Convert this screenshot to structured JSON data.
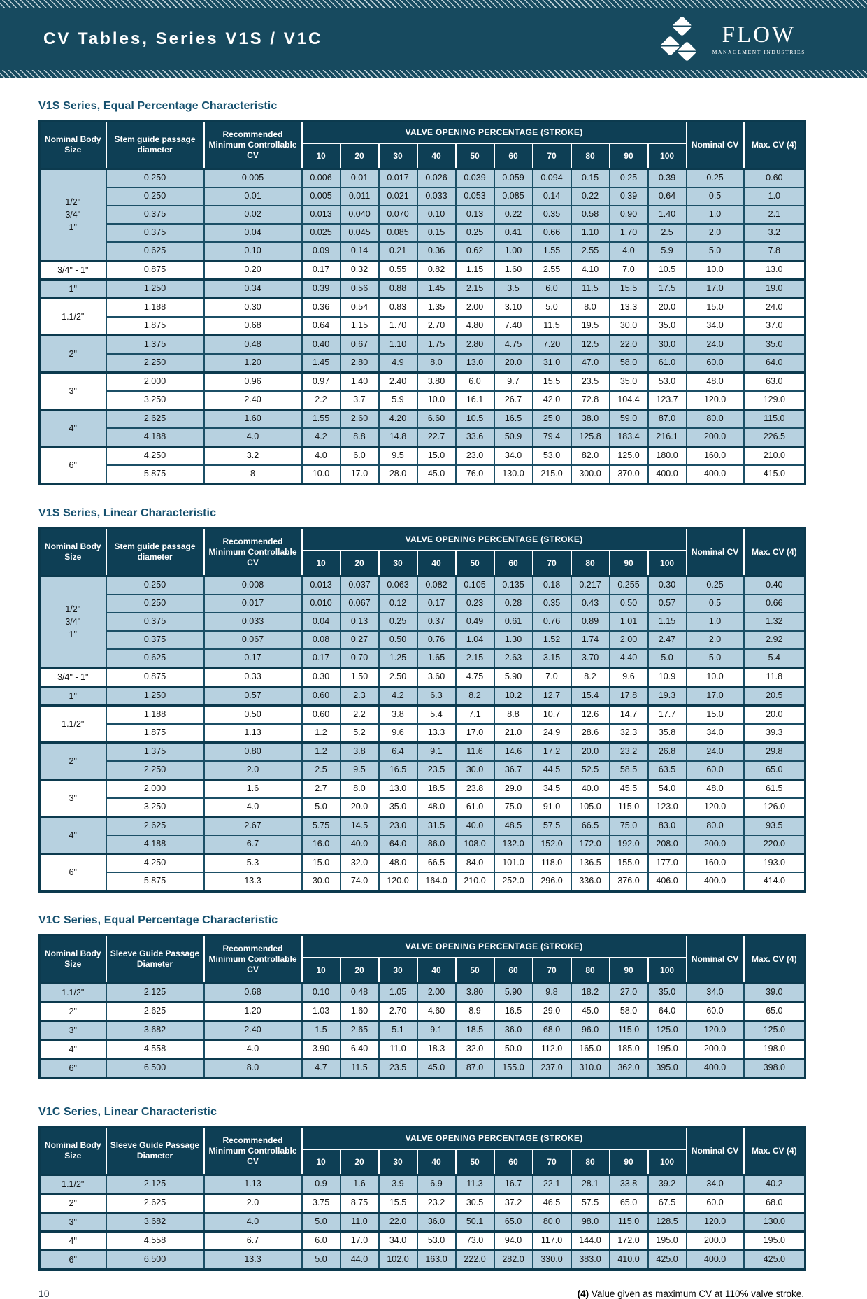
{
  "header": {
    "title": "CV Tables, Series V1S / V1C",
    "logo_name": "FLOW",
    "logo_subtitle": "MANAGEMENT INDUSTRIES"
  },
  "footer": {
    "page_number": "10",
    "note_marker": "(4)",
    "note_text": " Value given as maximum CV at 110% valve stroke."
  },
  "shared_headers": {
    "body_size": "Nominal Body Size",
    "min_cv": "Recommended Minimum Controllable CV",
    "stroke_title": "VALVE OPENING PERCENTAGE (STROKE)",
    "stroke_ticks": [
      "10",
      "20",
      "30",
      "40",
      "50",
      "60",
      "70",
      "80",
      "90",
      "100"
    ],
    "nominal_cv": "Nominal CV",
    "max_cv": "Max. CV (4)"
  },
  "tables": [
    {
      "title": "V1S Series, Equal Percentage Characteristic",
      "diameter_header": "Stem guide passage diameter",
      "groups": [
        {
          "size_lines": [
            "1/2\"",
            "3/4\"",
            "1\""
          ],
          "tint": "blue",
          "rows": [
            [
              "0.250",
              "0.005",
              "0.006",
              "0.01",
              "0.017",
              "0.026",
              "0.039",
              "0.059",
              "0.094",
              "0.15",
              "0.25",
              "0.39",
              "0.25",
              "0.60"
            ],
            [
              "0.250",
              "0.01",
              "0.005",
              "0.011",
              "0.021",
              "0.033",
              "0.053",
              "0.085",
              "0.14",
              "0.22",
              "0.39",
              "0.64",
              "0.5",
              "1.0"
            ],
            [
              "0.375",
              "0.02",
              "0.013",
              "0.040",
              "0.070",
              "0.10",
              "0.13",
              "0.22",
              "0.35",
              "0.58",
              "0.90",
              "1.40",
              "1.0",
              "2.1"
            ],
            [
              "0.375",
              "0.04",
              "0.025",
              "0.045",
              "0.085",
              "0.15",
              "0.25",
              "0.41",
              "0.66",
              "1.10",
              "1.70",
              "2.5",
              "2.0",
              "3.2"
            ],
            [
              "0.625",
              "0.10",
              "0.09",
              "0.14",
              "0.21",
              "0.36",
              "0.62",
              "1.00",
              "1.55",
              "2.55",
              "4.0",
              "5.9",
              "5.0",
              "7.8"
            ]
          ]
        },
        {
          "size_lines": [
            "3/4\" - 1\""
          ],
          "tint": "white",
          "rows": [
            [
              "0.875",
              "0.20",
              "0.17",
              "0.32",
              "0.55",
              "0.82",
              "1.15",
              "1.60",
              "2.55",
              "4.10",
              "7.0",
              "10.5",
              "10.0",
              "13.0"
            ]
          ]
        },
        {
          "size_lines": [
            "1\""
          ],
          "tint": "blue",
          "rows": [
            [
              "1.250",
              "0.34",
              "0.39",
              "0.56",
              "0.88",
              "1.45",
              "2.15",
              "3.5",
              "6.0",
              "11.5",
              "15.5",
              "17.5",
              "17.0",
              "19.0"
            ]
          ]
        },
        {
          "size_lines": [
            "1.1/2\""
          ],
          "tint": "white",
          "rows": [
            [
              "1.188",
              "0.30",
              "0.36",
              "0.54",
              "0.83",
              "1.35",
              "2.00",
              "3.10",
              "5.0",
              "8.0",
              "13.3",
              "20.0",
              "15.0",
              "24.0"
            ],
            [
              "1.875",
              "0.68",
              "0.64",
              "1.15",
              "1.70",
              "2.70",
              "4.80",
              "7.40",
              "11.5",
              "19.5",
              "30.0",
              "35.0",
              "34.0",
              "37.0"
            ]
          ]
        },
        {
          "size_lines": [
            "2\""
          ],
          "tint": "blue",
          "rows": [
            [
              "1.375",
              "0.48",
              "0.40",
              "0.67",
              "1.10",
              "1.75",
              "2.80",
              "4.75",
              "7.20",
              "12.5",
              "22.0",
              "30.0",
              "24.0",
              "35.0"
            ],
            [
              "2.250",
              "1.20",
              "1.45",
              "2.80",
              "4.9",
              "8.0",
              "13.0",
              "20.0",
              "31.0",
              "47.0",
              "58.0",
              "61.0",
              "60.0",
              "64.0"
            ]
          ]
        },
        {
          "size_lines": [
            "3\""
          ],
          "tint": "white",
          "rows": [
            [
              "2.000",
              "0.96",
              "0.97",
              "1.40",
              "2.40",
              "3.80",
              "6.0",
              "9.7",
              "15.5",
              "23.5",
              "35.0",
              "53.0",
              "48.0",
              "63.0"
            ],
            [
              "3.250",
              "2.40",
              "2.2",
              "3.7",
              "5.9",
              "10.0",
              "16.1",
              "26.7",
              "42.0",
              "72.8",
              "104.4",
              "123.7",
              "120.0",
              "129.0"
            ]
          ]
        },
        {
          "size_lines": [
            "4\""
          ],
          "tint": "blue",
          "rows": [
            [
              "2.625",
              "1.60",
              "1.55",
              "2.60",
              "4.20",
              "6.60",
              "10.5",
              "16.5",
              "25.0",
              "38.0",
              "59.0",
              "87.0",
              "80.0",
              "115.0"
            ],
            [
              "4.188",
              "4.0",
              "4.2",
              "8.8",
              "14.8",
              "22.7",
              "33.6",
              "50.9",
              "79.4",
              "125.8",
              "183.4",
              "216.1",
              "200.0",
              "226.5"
            ]
          ]
        },
        {
          "size_lines": [
            "6\""
          ],
          "tint": "white",
          "rows": [
            [
              "4.250",
              "3.2",
              "4.0",
              "6.0",
              "9.5",
              "15.0",
              "23.0",
              "34.0",
              "53.0",
              "82.0",
              "125.0",
              "180.0",
              "160.0",
              "210.0"
            ],
            [
              "5.875",
              "8",
              "10.0",
              "17.0",
              "28.0",
              "45.0",
              "76.0",
              "130.0",
              "215.0",
              "300.0",
              "370.0",
              "400.0",
              "400.0",
              "415.0"
            ]
          ]
        }
      ]
    },
    {
      "title": "V1S Series, Linear Characteristic",
      "diameter_header": "Stem guide passage diameter",
      "groups": [
        {
          "size_lines": [
            "1/2\"",
            "3/4\"",
            "1\""
          ],
          "tint": "blue",
          "rows": [
            [
              "0.250",
              "0.008",
              "0.013",
              "0.037",
              "0.063",
              "0.082",
              "0.105",
              "0.135",
              "0.18",
              "0.217",
              "0.255",
              "0.30",
              "0.25",
              "0.40"
            ],
            [
              "0.250",
              "0.017",
              "0.010",
              "0.067",
              "0.12",
              "0.17",
              "0.23",
              "0.28",
              "0.35",
              "0.43",
              "0.50",
              "0.57",
              "0.5",
              "0.66"
            ],
            [
              "0.375",
              "0.033",
              "0.04",
              "0.13",
              "0.25",
              "0.37",
              "0.49",
              "0.61",
              "0.76",
              "0.89",
              "1.01",
              "1.15",
              "1.0",
              "1.32"
            ],
            [
              "0.375",
              "0.067",
              "0.08",
              "0.27",
              "0.50",
              "0.76",
              "1.04",
              "1.30",
              "1.52",
              "1.74",
              "2.00",
              "2.47",
              "2.0",
              "2.92"
            ],
            [
              "0.625",
              "0.17",
              "0.17",
              "0.70",
              "1.25",
              "1.65",
              "2.15",
              "2.63",
              "3.15",
              "3.70",
              "4.40",
              "5.0",
              "5.0",
              "5.4"
            ]
          ]
        },
        {
          "size_lines": [
            "3/4\" - 1\""
          ],
          "tint": "white",
          "rows": [
            [
              "0.875",
              "0.33",
              "0.30",
              "1.50",
              "2.50",
              "3.60",
              "4.75",
              "5.90",
              "7.0",
              "8.2",
              "9.6",
              "10.9",
              "10.0",
              "11.8"
            ]
          ]
        },
        {
          "size_lines": [
            "1\""
          ],
          "tint": "blue",
          "rows": [
            [
              "1.250",
              "0.57",
              "0.60",
              "2.3",
              "4.2",
              "6.3",
              "8.2",
              "10.2",
              "12.7",
              "15.4",
              "17.8",
              "19.3",
              "17.0",
              "20.5"
            ]
          ]
        },
        {
          "size_lines": [
            "1.1/2\""
          ],
          "tint": "white",
          "rows": [
            [
              "1.188",
              "0.50",
              "0.60",
              "2.2",
              "3.8",
              "5.4",
              "7.1",
              "8.8",
              "10.7",
              "12.6",
              "14.7",
              "17.7",
              "15.0",
              "20.0"
            ],
            [
              "1.875",
              "1.13",
              "1.2",
              "5.2",
              "9.6",
              "13.3",
              "17.0",
              "21.0",
              "24.9",
              "28.6",
              "32.3",
              "35.8",
              "34.0",
              "39.3"
            ]
          ]
        },
        {
          "size_lines": [
            "2\""
          ],
          "tint": "blue",
          "rows": [
            [
              "1.375",
              "0.80",
              "1.2",
              "3.8",
              "6.4",
              "9.1",
              "11.6",
              "14.6",
              "17.2",
              "20.0",
              "23.2",
              "26.8",
              "24.0",
              "29.8"
            ],
            [
              "2.250",
              "2.0",
              "2.5",
              "9.5",
              "16.5",
              "23.5",
              "30.0",
              "36.7",
              "44.5",
              "52.5",
              "58.5",
              "63.5",
              "60.0",
              "65.0"
            ]
          ]
        },
        {
          "size_lines": [
            "3\""
          ],
          "tint": "white",
          "rows": [
            [
              "2.000",
              "1.6",
              "2.7",
              "8.0",
              "13.0",
              "18.5",
              "23.8",
              "29.0",
              "34.5",
              "40.0",
              "45.5",
              "54.0",
              "48.0",
              "61.5"
            ],
            [
              "3.250",
              "4.0",
              "5.0",
              "20.0",
              "35.0",
              "48.0",
              "61.0",
              "75.0",
              "91.0",
              "105.0",
              "115.0",
              "123.0",
              "120.0",
              "126.0"
            ]
          ]
        },
        {
          "size_lines": [
            "4\""
          ],
          "tint": "blue",
          "rows": [
            [
              "2.625",
              "2.67",
              "5.75",
              "14.5",
              "23.0",
              "31.5",
              "40.0",
              "48.5",
              "57.5",
              "66.5",
              "75.0",
              "83.0",
              "80.0",
              "93.5"
            ],
            [
              "4.188",
              "6.7",
              "16.0",
              "40.0",
              "64.0",
              "86.0",
              "108.0",
              "132.0",
              "152.0",
              "172.0",
              "192.0",
              "208.0",
              "200.0",
              "220.0"
            ]
          ]
        },
        {
          "size_lines": [
            "6\""
          ],
          "tint": "white",
          "rows": [
            [
              "4.250",
              "5.3",
              "15.0",
              "32.0",
              "48.0",
              "66.5",
              "84.0",
              "101.0",
              "118.0",
              "136.5",
              "155.0",
              "177.0",
              "160.0",
              "193.0"
            ],
            [
              "5.875",
              "13.3",
              "30.0",
              "74.0",
              "120.0",
              "164.0",
              "210.0",
              "252.0",
              "296.0",
              "336.0",
              "376.0",
              "406.0",
              "400.0",
              "414.0"
            ]
          ]
        }
      ]
    },
    {
      "title": "V1C Series, Equal Percentage Characteristic",
      "diameter_header": "Sleeve Guide Passage Diameter",
      "groups": [
        {
          "size_lines": [
            "1.1/2\""
          ],
          "tint": "blue",
          "rows": [
            [
              "2.125",
              "0.68",
              "0.10",
              "0.48",
              "1.05",
              "2.00",
              "3.80",
              "5.90",
              "9.8",
              "18.2",
              "27.0",
              "35.0",
              "34.0",
              "39.0"
            ]
          ]
        },
        {
          "size_lines": [
            "2\""
          ],
          "tint": "white",
          "rows": [
            [
              "2.625",
              "1.20",
              "1.03",
              "1.60",
              "2.70",
              "4.60",
              "8.9",
              "16.5",
              "29.0",
              "45.0",
              "58.0",
              "64.0",
              "60.0",
              "65.0"
            ]
          ]
        },
        {
          "size_lines": [
            "3\""
          ],
          "tint": "blue",
          "rows": [
            [
              "3.682",
              "2.40",
              "1.5",
              "2.65",
              "5.1",
              "9.1",
              "18.5",
              "36.0",
              "68.0",
              "96.0",
              "115.0",
              "125.0",
              "120.0",
              "125.0"
            ]
          ]
        },
        {
          "size_lines": [
            "4\""
          ],
          "tint": "white",
          "rows": [
            [
              "4.558",
              "4.0",
              "3.90",
              "6.40",
              "11.0",
              "18.3",
              "32.0",
              "50.0",
              "112.0",
              "165.0",
              "185.0",
              "195.0",
              "200.0",
              "198.0"
            ]
          ]
        },
        {
          "size_lines": [
            "6\""
          ],
          "tint": "blue",
          "rows": [
            [
              "6.500",
              "8.0",
              "4.7",
              "11.5",
              "23.5",
              "45.0",
              "87.0",
              "155.0",
              "237.0",
              "310.0",
              "362.0",
              "395.0",
              "400.0",
              "398.0"
            ]
          ]
        }
      ]
    },
    {
      "title": "V1C Series, Linear Characteristic",
      "diameter_header": "Sleeve Guide Passage Diameter",
      "groups": [
        {
          "size_lines": [
            "1.1/2\""
          ],
          "tint": "blue",
          "rows": [
            [
              "2.125",
              "1.13",
              "0.9",
              "1.6",
              "3.9",
              "6.9",
              "11.3",
              "16.7",
              "22.1",
              "28.1",
              "33.8",
              "39.2",
              "34.0",
              "40.2"
            ]
          ]
        },
        {
          "size_lines": [
            "2\""
          ],
          "tint": "white",
          "rows": [
            [
              "2.625",
              "2.0",
              "3.75",
              "8.75",
              "15.5",
              "23.2",
              "30.5",
              "37.2",
              "46.5",
              "57.5",
              "65.0",
              "67.5",
              "60.0",
              "68.0"
            ]
          ]
        },
        {
          "size_lines": [
            "3\""
          ],
          "tint": "blue",
          "rows": [
            [
              "3.682",
              "4.0",
              "5.0",
              "11.0",
              "22.0",
              "36.0",
              "50.1",
              "65.0",
              "80.0",
              "98.0",
              "115.0",
              "128.5",
              "120.0",
              "130.0"
            ]
          ]
        },
        {
          "size_lines": [
            "4\""
          ],
          "tint": "white",
          "rows": [
            [
              "4.558",
              "6.7",
              "6.0",
              "17.0",
              "34.0",
              "53.0",
              "73.0",
              "94.0",
              "117.0",
              "144.0",
              "172.0",
              "195.0",
              "200.0",
              "195.0"
            ]
          ]
        },
        {
          "size_lines": [
            "6\""
          ],
          "tint": "blue",
          "rows": [
            [
              "6.500",
              "13.3",
              "5.0",
              "44.0",
              "102.0",
              "163.0",
              "222.0",
              "282.0",
              "330.0",
              "383.0",
              "410.0",
              "425.0",
              "400.0",
              "425.0"
            ]
          ]
        }
      ]
    }
  ]
}
